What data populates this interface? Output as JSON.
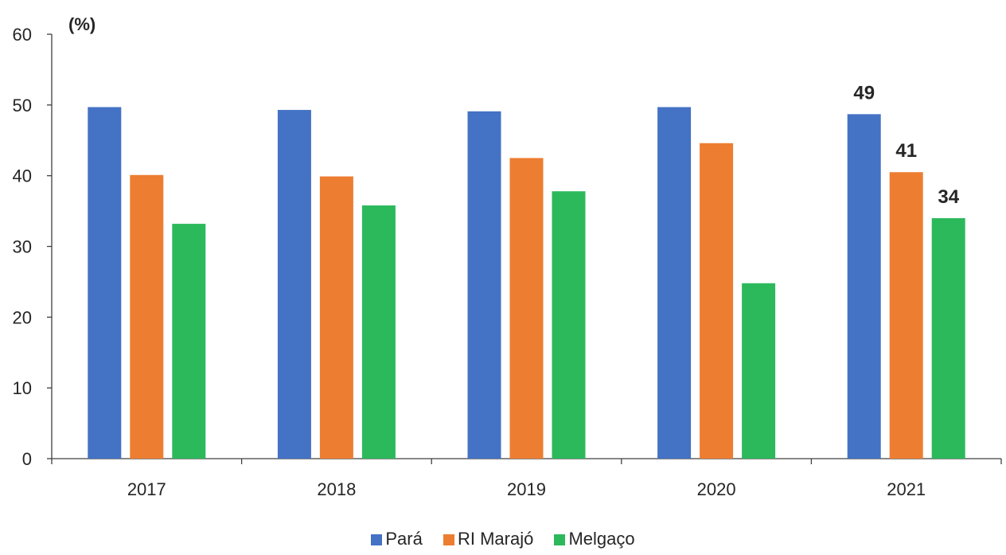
{
  "chart_data": {
    "type": "bar",
    "categories": [
      "2017",
      "2018",
      "2019",
      "2020",
      "2021"
    ],
    "series": [
      {
        "name": "Pará",
        "color": "#4472c4",
        "values": [
          49.7,
          49.3,
          49.1,
          49.7,
          48.7
        ]
      },
      {
        "name": "RI Marajó",
        "color": "#ed7d31",
        "values": [
          40.1,
          39.9,
          42.5,
          44.6,
          40.5
        ]
      },
      {
        "name": "Melgaço",
        "color": "#2cb95c",
        "values": [
          33.2,
          35.8,
          37.8,
          24.8,
          34.0
        ]
      }
    ],
    "data_labels": [
      {
        "category": "2021",
        "series": "Pará",
        "text": "49"
      },
      {
        "category": "2021",
        "series": "RI Marajó",
        "text": "41"
      },
      {
        "category": "2021",
        "series": "Melgaço",
        "text": "34"
      }
    ],
    "yunit": "(%)",
    "yticks": [
      "0",
      "10",
      "20",
      "30",
      "40",
      "50",
      "60"
    ],
    "ylim": [
      0,
      60
    ],
    "grid": false,
    "legend_position": "bottom"
  }
}
